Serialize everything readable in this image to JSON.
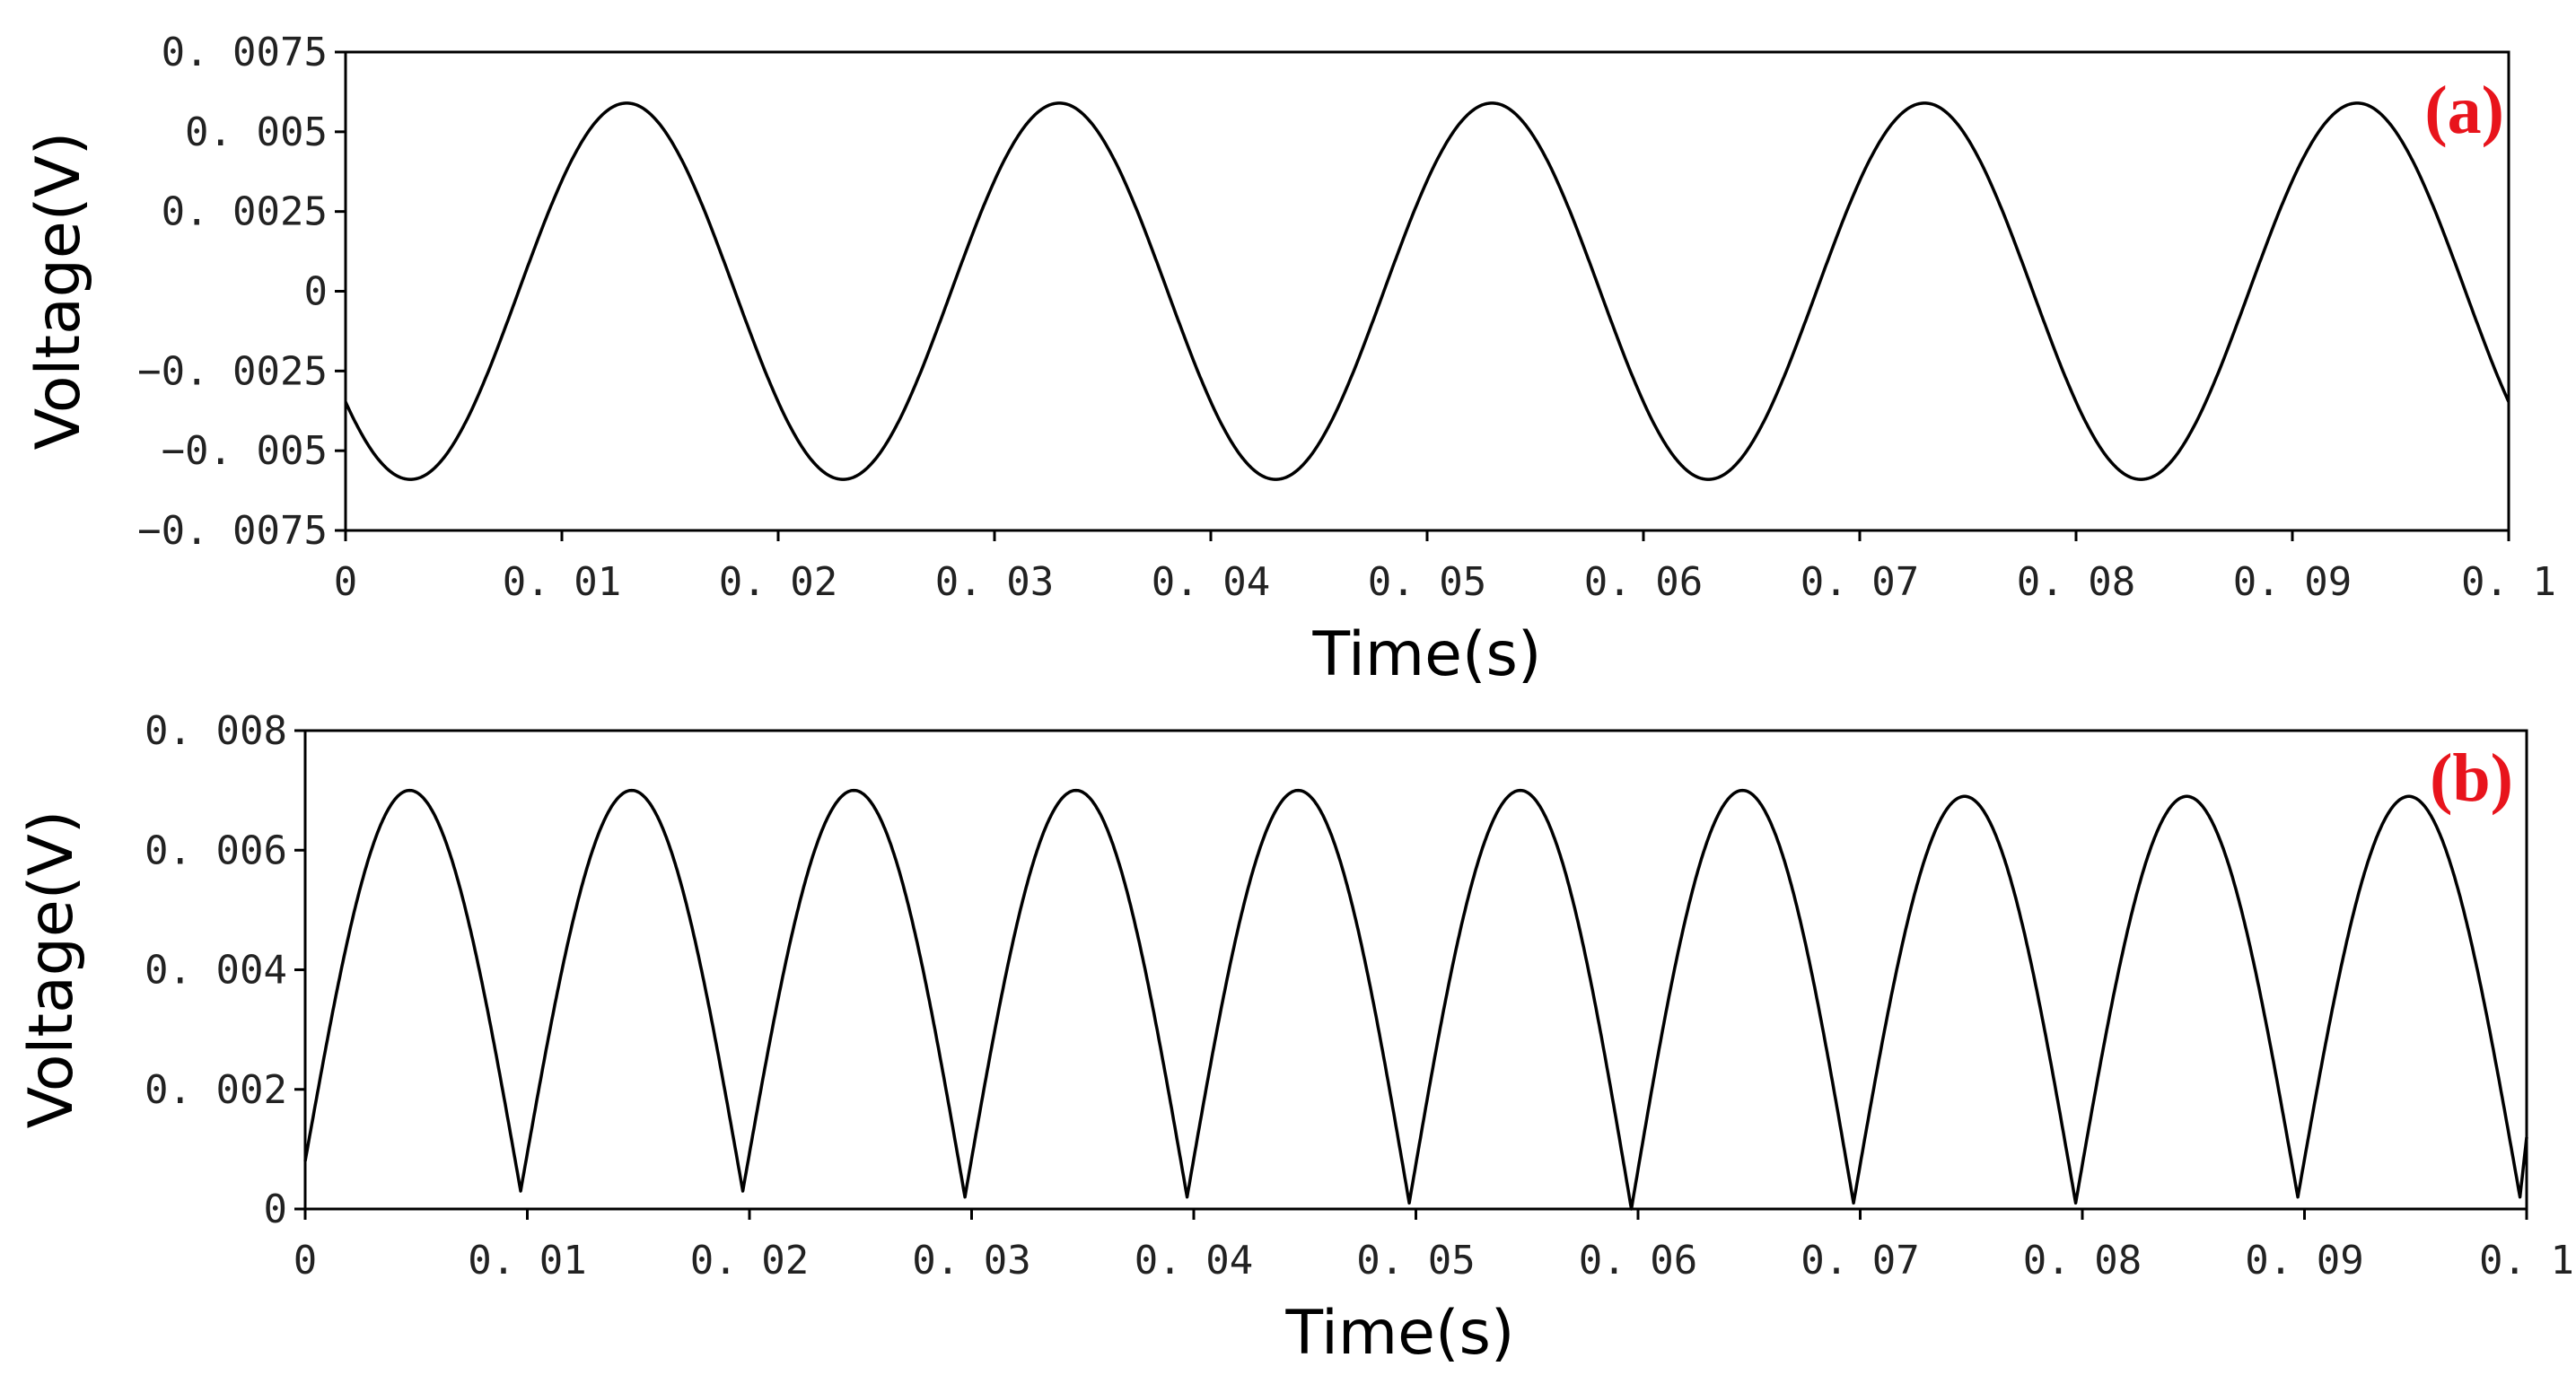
{
  "chart_data": [
    {
      "type": "line",
      "panel_tag": "(a)",
      "panel_tag_color": "#e8141c",
      "xlabel": "Time(s)",
      "ylabel": "Voltage(V)",
      "xlim": [
        0,
        0.1
      ],
      "ylim": [
        -0.0075,
        0.0075
      ],
      "x_ticks": [
        "0",
        "0. 01",
        "0. 02",
        "0. 03",
        "0. 04",
        "0. 05",
        "0. 06",
        "0. 07",
        "0. 08",
        "0. 09",
        "0. 1"
      ],
      "x_tick_values": [
        0,
        0.01,
        0.02,
        0.03,
        0.04,
        0.05,
        0.06,
        0.07,
        0.08,
        0.09,
        0.1
      ],
      "y_ticks": [
        "0. 0075",
        "0. 005",
        "0. 0025",
        "0",
        "−0. 0025",
        "−0. 005",
        "−0. 0075"
      ],
      "y_tick_values": [
        0.0075,
        0.005,
        0.0025,
        0,
        -0.0025,
        -0.005,
        -0.0075
      ],
      "grid": false,
      "series": [
        {
          "waveform": "sine",
          "amplitude": 0.0059,
          "frequency_hz": 50,
          "first_peak_time": 0.013,
          "first_trough_time": 0.003,
          "value_at_start": -0.0035,
          "value_at_end": -0.0032
        }
      ]
    },
    {
      "type": "line",
      "panel_tag": "(b)",
      "panel_tag_color": "#e8141c",
      "xlabel": "Time(s)",
      "ylabel": "Voltage(V)",
      "xlim": [
        0,
        0.1
      ],
      "ylim": [
        0,
        0.008
      ],
      "x_ticks": [
        "0",
        "0. 01",
        "0. 02",
        "0. 03",
        "0. 04",
        "0. 05",
        "0. 06",
        "0. 07",
        "0. 08",
        "0. 09",
        "0. 1"
      ],
      "x_tick_values": [
        0,
        0.01,
        0.02,
        0.03,
        0.04,
        0.05,
        0.06,
        0.07,
        0.08,
        0.09,
        0.1
      ],
      "y_ticks": [
        "0. 008",
        "0. 006",
        "0. 004",
        "0. 002",
        "0"
      ],
      "y_tick_values": [
        0.008,
        0.006,
        0.004,
        0.002,
        0
      ],
      "grid": false,
      "series": [
        {
          "waveform": "full-wave rectified sine",
          "peak_times": [
            0.0047,
            0.0147,
            0.0247,
            0.0347,
            0.0447,
            0.0547,
            0.0647,
            0.0747,
            0.0847,
            0.0947
          ],
          "peak_values": [
            0.007,
            0.007,
            0.007,
            0.007,
            0.007,
            0.007,
            0.007,
            0.0069,
            0.0069,
            0.0069
          ],
          "valley_times": [
            0.0097,
            0.0197,
            0.0297,
            0.0397,
            0.0497,
            0.0597,
            0.0697,
            0.0797,
            0.0897,
            0.0997
          ],
          "valley_values": [
            0.0003,
            0.0003,
            0.0002,
            0.0002,
            0.0001,
            0.0,
            0.0001,
            0.0001,
            0.0002,
            0.0002
          ],
          "value_at_start": 0.0008,
          "value_at_end": 0.0012
        }
      ]
    }
  ]
}
